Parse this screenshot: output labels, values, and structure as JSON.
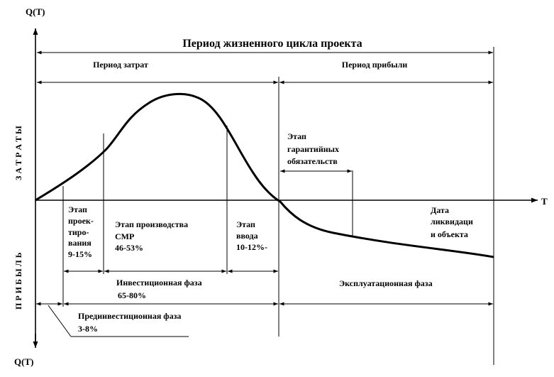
{
  "axes": {
    "y_top_label": "Q(T)",
    "y_bottom_label": "Q(T)",
    "x_label": "T",
    "upper_side_label": "З А Т Р А Т Ы",
    "lower_side_label": "П Р И Б Ы Л Ь"
  },
  "header": {
    "title": "Период жизненного цикла проекта",
    "cost_period": "Период затрат",
    "profit_period": "Период прибыли"
  },
  "warranty": {
    "lines": [
      "Этап",
      "гарантийных",
      "обязательств"
    ]
  },
  "stages": {
    "design": {
      "lines": [
        "Этап",
        "проек-",
        "тиро-",
        "вания",
        "9-15%"
      ]
    },
    "construction": {
      "lines": [
        "Этап производства",
        "СМР",
        "46-53%"
      ]
    },
    "commissioning": {
      "lines": [
        "Этап",
        "ввода",
        "10-12%-"
      ]
    },
    "liquidation": {
      "lines": [
        "Дата",
        "ликвидаци",
        "и объекта"
      ]
    }
  },
  "phases": {
    "investment": {
      "label": "Инвестиционная фаза",
      "percent": "65-80%"
    },
    "operation": {
      "label": "Эксплуатационная фаза"
    },
    "pre_investment": {
      "label": "Прединвестиционная фаза",
      "percent": "3-8%"
    }
  }
}
